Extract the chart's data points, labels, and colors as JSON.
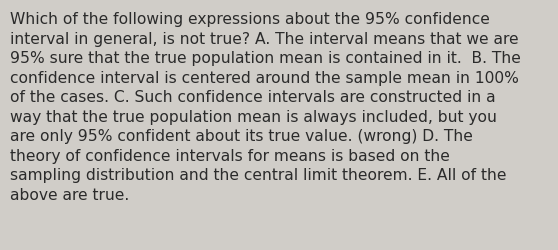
{
  "lines": [
    "Which of the following expressions about the 95% confidence",
    "interval in general, is not true? A. The interval means that we are",
    "95% sure that the true population mean is contained in it.  B. The",
    "confidence interval is centered around the sample mean in 100%",
    "of the cases. C. Such confidence intervals are constructed in a",
    "way that the true population mean is always included, but you",
    "are only 95% confident about its true value. (wrong) D. The",
    "theory of confidence intervals for means is based on the",
    "sampling distribution and the central limit theorem. E. All of the",
    "above are true."
  ],
  "background_color": "#d0cdc8",
  "text_color": "#2b2b2b",
  "font_size": 11.2,
  "fig_width": 5.58,
  "fig_height": 2.51,
  "dpi": 100
}
